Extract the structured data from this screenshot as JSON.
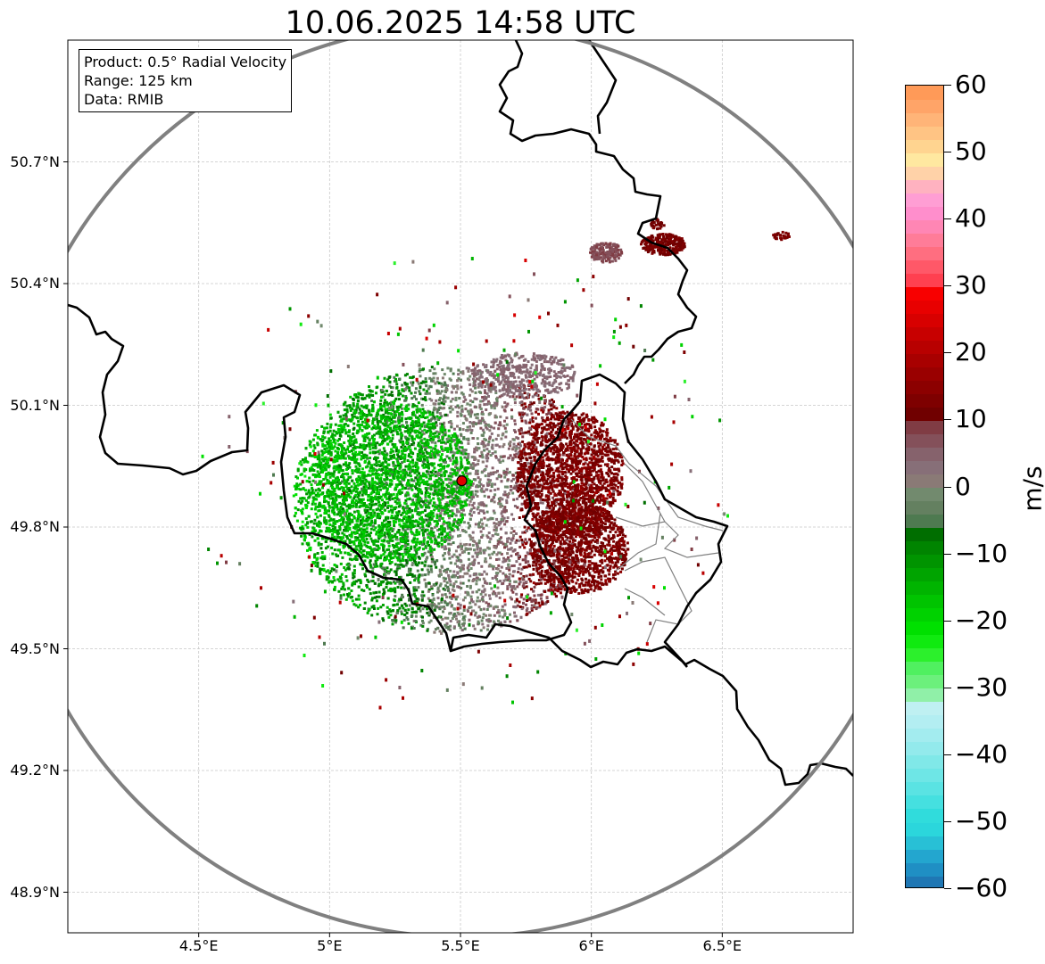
{
  "title": "10.06.2025 14:58 UTC",
  "info": {
    "product": "Product: 0.5° Radial Velocity",
    "range": "Range: 125 km",
    "data": "Data: RMIB"
  },
  "map": {
    "lon_range": [
      4.0,
      7.0
    ],
    "lat_range": [
      48.8,
      51.0
    ],
    "lon_ticks": [
      {
        "value": 4.5,
        "label": "4.5°E"
      },
      {
        "value": 5.0,
        "label": "5°E"
      },
      {
        "value": 5.5,
        "label": "5.5°E"
      },
      {
        "value": 6.0,
        "label": "6°E"
      },
      {
        "value": 6.5,
        "label": "6.5°E"
      }
    ],
    "lat_ticks": [
      {
        "value": 50.7,
        "label": "50.7°N"
      },
      {
        "value": 50.4,
        "label": "50.4°N"
      },
      {
        "value": 50.1,
        "label": "50.1°N"
      },
      {
        "value": 49.8,
        "label": "49.8°N"
      },
      {
        "value": 49.5,
        "label": "49.5°N"
      },
      {
        "value": 49.2,
        "label": "49.2°N"
      },
      {
        "value": 48.9,
        "label": "48.9°N"
      }
    ],
    "radar_site": {
      "lon": 5.505,
      "lat": 49.914
    },
    "range_km": 125,
    "grid": true,
    "colors": {
      "range_ring": "#808080",
      "border": "#000000",
      "admin_border": "#808080",
      "radar_marker": "#e00000"
    }
  },
  "colorbar": {
    "unit": "m/s",
    "min": -60,
    "max": 60,
    "ticks": [
      {
        "value": 60,
        "label": "60"
      },
      {
        "value": 50,
        "label": "50"
      },
      {
        "value": 40,
        "label": "40"
      },
      {
        "value": 30,
        "label": "30"
      },
      {
        "value": 20,
        "label": "20"
      },
      {
        "value": 10,
        "label": "10"
      },
      {
        "value": 0,
        "label": "0"
      },
      {
        "value": -10,
        "label": "−10"
      },
      {
        "value": -20,
        "label": "−20"
      },
      {
        "value": -30,
        "label": "−30"
      },
      {
        "value": -40,
        "label": "−40"
      },
      {
        "value": -50,
        "label": "−50"
      },
      {
        "value": -60,
        "label": "−60"
      }
    ],
    "bands": [
      {
        "from": -60,
        "to": -58,
        "color": "#1f77b4"
      },
      {
        "from": -58,
        "to": -56,
        "color": "#1f8fc4"
      },
      {
        "from": -56,
        "to": -54,
        "color": "#23a6cf"
      },
      {
        "from": -54,
        "to": -52,
        "color": "#28c0d6"
      },
      {
        "from": -52,
        "to": -50,
        "color": "#2bd6dc"
      },
      {
        "from": -50,
        "to": -48,
        "color": "#30dcdc"
      },
      {
        "from": -48,
        "to": -46,
        "color": "#45e0e0"
      },
      {
        "from": -46,
        "to": -44,
        "color": "#5ae3e3"
      },
      {
        "from": -44,
        "to": -42,
        "color": "#6ee6e6"
      },
      {
        "from": -42,
        "to": -40,
        "color": "#80e8e8"
      },
      {
        "from": -40,
        "to": -38,
        "color": "#93eaec"
      },
      {
        "from": -38,
        "to": -36,
        "color": "#a3ecef"
      },
      {
        "from": -36,
        "to": -34,
        "color": "#b3eef2"
      },
      {
        "from": -34,
        "to": -32,
        "color": "#bff0f2"
      },
      {
        "from": -32,
        "to": -30,
        "color": "#90f0a8"
      },
      {
        "from": -30,
        "to": -28,
        "color": "#6cf07c"
      },
      {
        "from": -28,
        "to": -26,
        "color": "#50f060"
      },
      {
        "from": -26,
        "to": -24,
        "color": "#2cf02c"
      },
      {
        "from": -24,
        "to": -22,
        "color": "#10ea10"
      },
      {
        "from": -22,
        "to": -20,
        "color": "#00e000"
      },
      {
        "from": -20,
        "to": -18,
        "color": "#00d200"
      },
      {
        "from": -18,
        "to": -16,
        "color": "#00c400"
      },
      {
        "from": -16,
        "to": -14,
        "color": "#00b400"
      },
      {
        "from": -14,
        "to": -12,
        "color": "#00a400"
      },
      {
        "from": -12,
        "to": -10,
        "color": "#009400"
      },
      {
        "from": -10,
        "to": -8,
        "color": "#008400"
      },
      {
        "from": -8,
        "to": -6,
        "color": "#006e00"
      },
      {
        "from": -6,
        "to": -4,
        "color": "#4e7a50"
      },
      {
        "from": -4,
        "to": -2,
        "color": "#648060"
      },
      {
        "from": -2,
        "to": 0,
        "color": "#728a6e"
      },
      {
        "from": 0,
        "to": 2,
        "color": "#8a7a76"
      },
      {
        "from": 2,
        "to": 4,
        "color": "#876f78"
      },
      {
        "from": 4,
        "to": 6,
        "color": "#86626c"
      },
      {
        "from": 6,
        "to": 8,
        "color": "#84505a"
      },
      {
        "from": 8,
        "to": 10,
        "color": "#803c44"
      },
      {
        "from": 10,
        "to": 12,
        "color": "#700000"
      },
      {
        "from": 12,
        "to": 14,
        "color": "#7e0000"
      },
      {
        "from": 14,
        "to": 16,
        "color": "#8c0000"
      },
      {
        "from": 16,
        "to": 18,
        "color": "#9a0000"
      },
      {
        "from": 18,
        "to": 20,
        "color": "#a80000"
      },
      {
        "from": 20,
        "to": 22,
        "color": "#b80000"
      },
      {
        "from": 22,
        "to": 24,
        "color": "#c80000"
      },
      {
        "from": 24,
        "to": 26,
        "color": "#d80000"
      },
      {
        "from": 26,
        "to": 28,
        "color": "#e80000"
      },
      {
        "from": 28,
        "to": 30,
        "color": "#f80000"
      },
      {
        "from": 30,
        "to": 32,
        "color": "#ff4050"
      },
      {
        "from": 32,
        "to": 34,
        "color": "#ff5868"
      },
      {
        "from": 34,
        "to": 36,
        "color": "#ff6e80"
      },
      {
        "from": 36,
        "to": 38,
        "color": "#ff7c98"
      },
      {
        "from": 38,
        "to": 40,
        "color": "#ff86b4"
      },
      {
        "from": 40,
        "to": 42,
        "color": "#ff8ecc"
      },
      {
        "from": 42,
        "to": 44,
        "color": "#ff9ed4"
      },
      {
        "from": 44,
        "to": 46,
        "color": "#ffb2c0"
      },
      {
        "from": 46,
        "to": 48,
        "color": "#ffd2a8"
      },
      {
        "from": 48,
        "to": 50,
        "color": "#ffe8a0"
      },
      {
        "from": 50,
        "to": 52,
        "color": "#ffd490"
      },
      {
        "from": 52,
        "to": 54,
        "color": "#ffc484"
      },
      {
        "from": 54,
        "to": 56,
        "color": "#ffb478"
      },
      {
        "from": 56,
        "to": 58,
        "color": "#ffa468"
      },
      {
        "from": 58,
        "to": 60,
        "color": "#ff9a58"
      }
    ]
  }
}
